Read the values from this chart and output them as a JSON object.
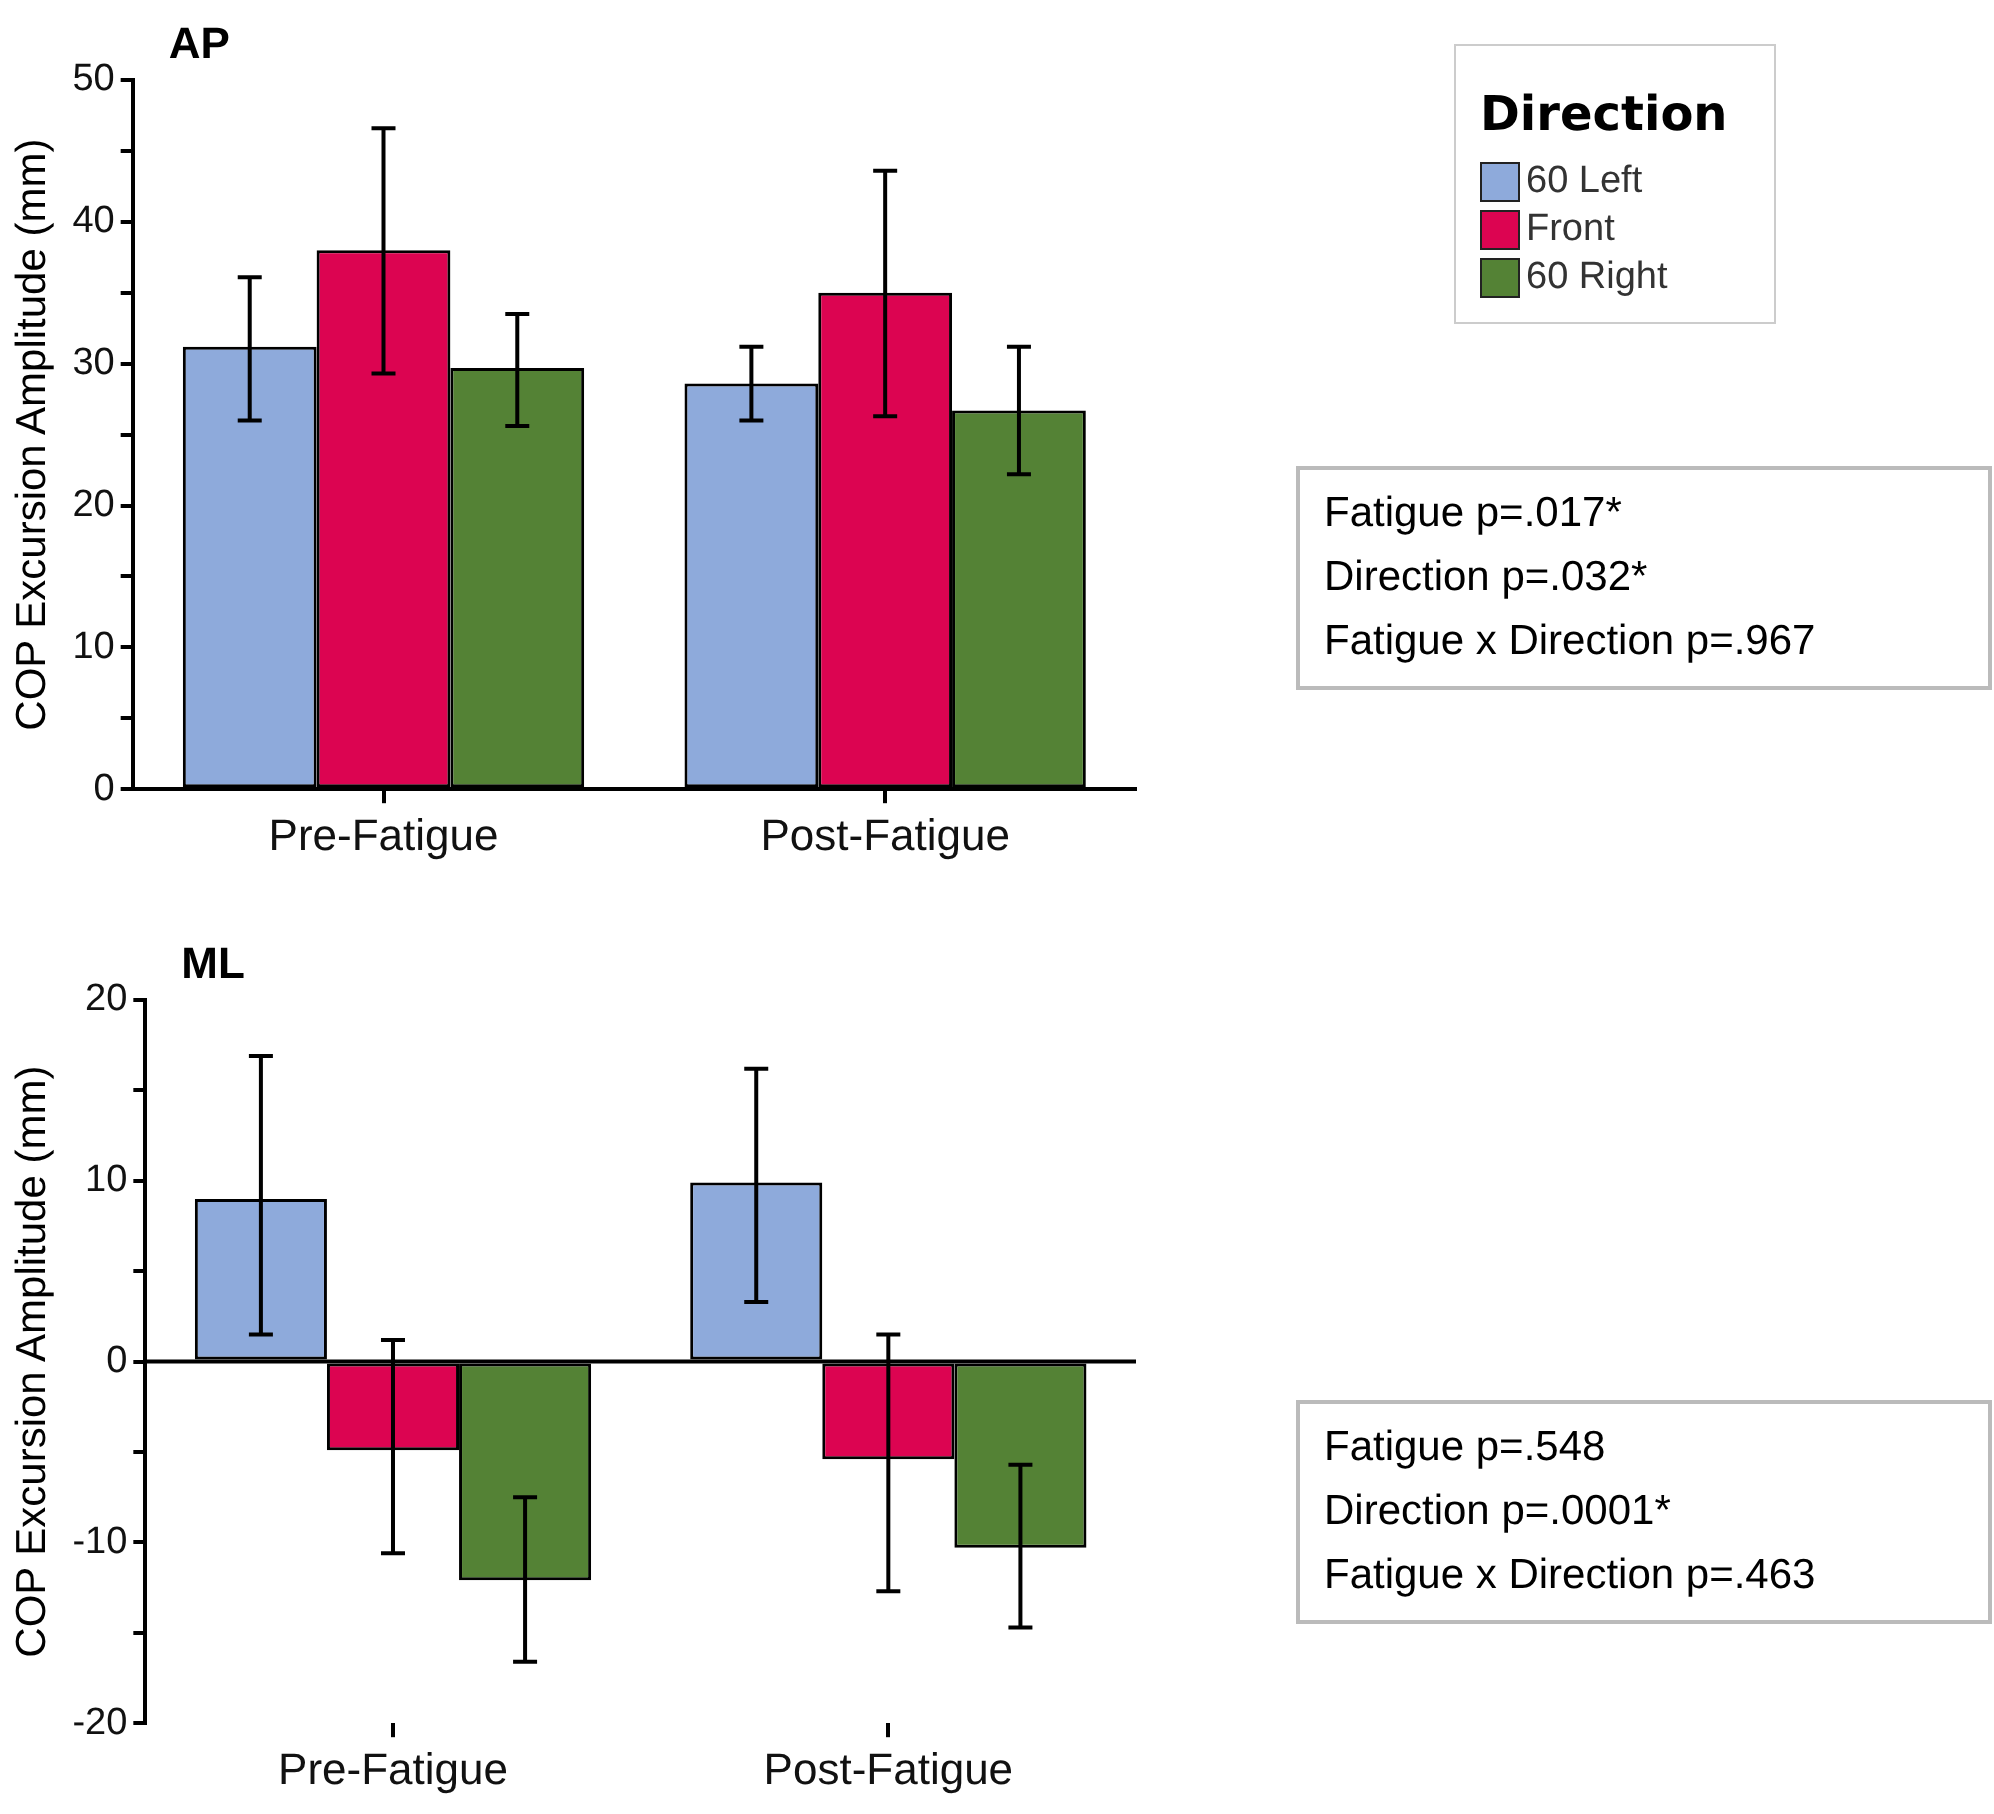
{
  "chart_data": [
    {
      "type": "bar",
      "title": "AP",
      "ylabel": "COP Excursion Amplitude (mm)",
      "categories": [
        "Pre-Fatigue",
        "Post-Fatigue"
      ],
      "series": [
        {
          "name": "60 Left",
          "color": "#8eaadb",
          "values": [
            31.2,
            28.6
          ],
          "errors": [
            [
              26.0,
              36.1
            ],
            [
              26.0,
              31.2
            ]
          ]
        },
        {
          "name": "Front",
          "color": "#dc0451",
          "values": [
            38.0,
            35.0
          ],
          "errors": [
            [
              29.3,
              46.6
            ],
            [
              26.3,
              43.6
            ]
          ]
        },
        {
          "name": "60 Right",
          "color": "#548235",
          "values": [
            29.7,
            26.7
          ],
          "errors": [
            [
              25.6,
              33.5
            ],
            [
              22.2,
              31.2
            ]
          ]
        }
      ],
      "ylim": [
        0,
        50
      ],
      "yticks": [
        0,
        {
          "value": 5,
          "label": null
        },
        10,
        {
          "value": 15,
          "label": null
        },
        20,
        {
          "value": 25,
          "label": null
        },
        30,
        {
          "value": 35,
          "label": null
        },
        40,
        {
          "value": 45,
          "label": null
        },
        50
      ],
      "legend": "right",
      "legend_title": "Direction",
      "grid": false,
      "annotations": [
        "Fatigue p=.017*",
        "Direction p=.032*",
        "Fatigue x Direction p=.967"
      ]
    },
    {
      "type": "bar",
      "title": "ML",
      "ylabel": "COP Excursion Amplitude (mm)",
      "categories": [
        "Pre-Fatigue",
        "Post-Fatigue"
      ],
      "series": [
        {
          "color": "#8eaadb",
          "values": [
            9.0,
            9.9
          ],
          "errors": [
            [
              1.5,
              16.9
            ],
            [
              3.3,
              16.2
            ]
          ]
        },
        {
          "color": "#dc0451",
          "values": [
            -4.9,
            -5.4
          ],
          "errors": [
            [
              -10.6,
              1.2
            ],
            [
              -12.7,
              1.5
            ]
          ]
        },
        {
          "color": "#548235",
          "values": [
            -12.1,
            -10.3
          ],
          "errors": [
            [
              -16.6,
              -7.5
            ],
            [
              -14.7,
              -5.7
            ]
          ]
        }
      ],
      "ylim": [
        -20,
        20
      ],
      "yticks": [
        -20,
        {
          "value": -15,
          "label": null
        },
        -10,
        {
          "value": -5,
          "label": null
        },
        0,
        {
          "value": 5,
          "label": null
        },
        10,
        {
          "value": 15,
          "label": null
        },
        20
      ],
      "grid": false,
      "ref_lines": [
        {
          "axis": "y",
          "value": 0,
          "color": "#000000"
        }
      ],
      "annotations": [
        "Fatigue p=.548",
        "Direction p=.0001*",
        "Fatigue x Direction p=.463"
      ]
    }
  ]
}
